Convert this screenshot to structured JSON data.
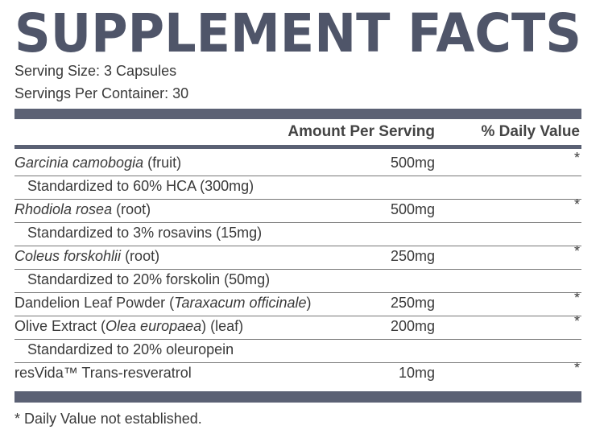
{
  "title": "SUPPLEMENT FACTS",
  "serving_size": "Serving Size: 3 Capsules",
  "servings_per_container": "Servings Per Container: 30",
  "header": {
    "amount": "Amount Per Serving",
    "daily_value": "% Daily Value"
  },
  "rows": [
    {
      "name": [
        {
          "text": "Garcinia camobogia",
          "italic": true
        },
        {
          "text": " (fruit)"
        }
      ],
      "amount": "500mg",
      "daily_value": "*"
    },
    {
      "name": [
        {
          "text": "Standardized to 60% HCA (300mg)"
        }
      ],
      "indent": true
    },
    {
      "name": [
        {
          "text": "Rhodiola rosea",
          "italic": true
        },
        {
          "text": " (root)"
        }
      ],
      "amount": "500mg",
      "daily_value": "*"
    },
    {
      "name": [
        {
          "text": "Standardized to 3% rosavins (15mg)"
        }
      ],
      "indent": true
    },
    {
      "name": [
        {
          "text": "Coleus forskohlii",
          "italic": true
        },
        {
          "text": " (root)"
        }
      ],
      "amount": "250mg",
      "daily_value": "*"
    },
    {
      "name": [
        {
          "text": "Standardized to 20% forskolin (50mg)"
        }
      ],
      "indent": true
    },
    {
      "name": [
        {
          "text": "Dandelion Leaf Powder ("
        },
        {
          "text": "Taraxacum officinale",
          "italic": true
        },
        {
          "text": ")"
        }
      ],
      "amount": "250mg",
      "daily_value": "*"
    },
    {
      "name": [
        {
          "text": "Olive Extract ("
        },
        {
          "text": "Olea europaea",
          "italic": true
        },
        {
          "text": ") (leaf)"
        }
      ],
      "amount": "200mg",
      "daily_value": "*"
    },
    {
      "name": [
        {
          "text": "Standardized to 20% oleuropein"
        }
      ],
      "indent": true
    },
    {
      "name": [
        {
          "text": "resVida™ Trans-resveratrol"
        }
      ],
      "amount": "10mg",
      "daily_value": "*"
    }
  ],
  "footnote": "* Daily Value not established."
}
